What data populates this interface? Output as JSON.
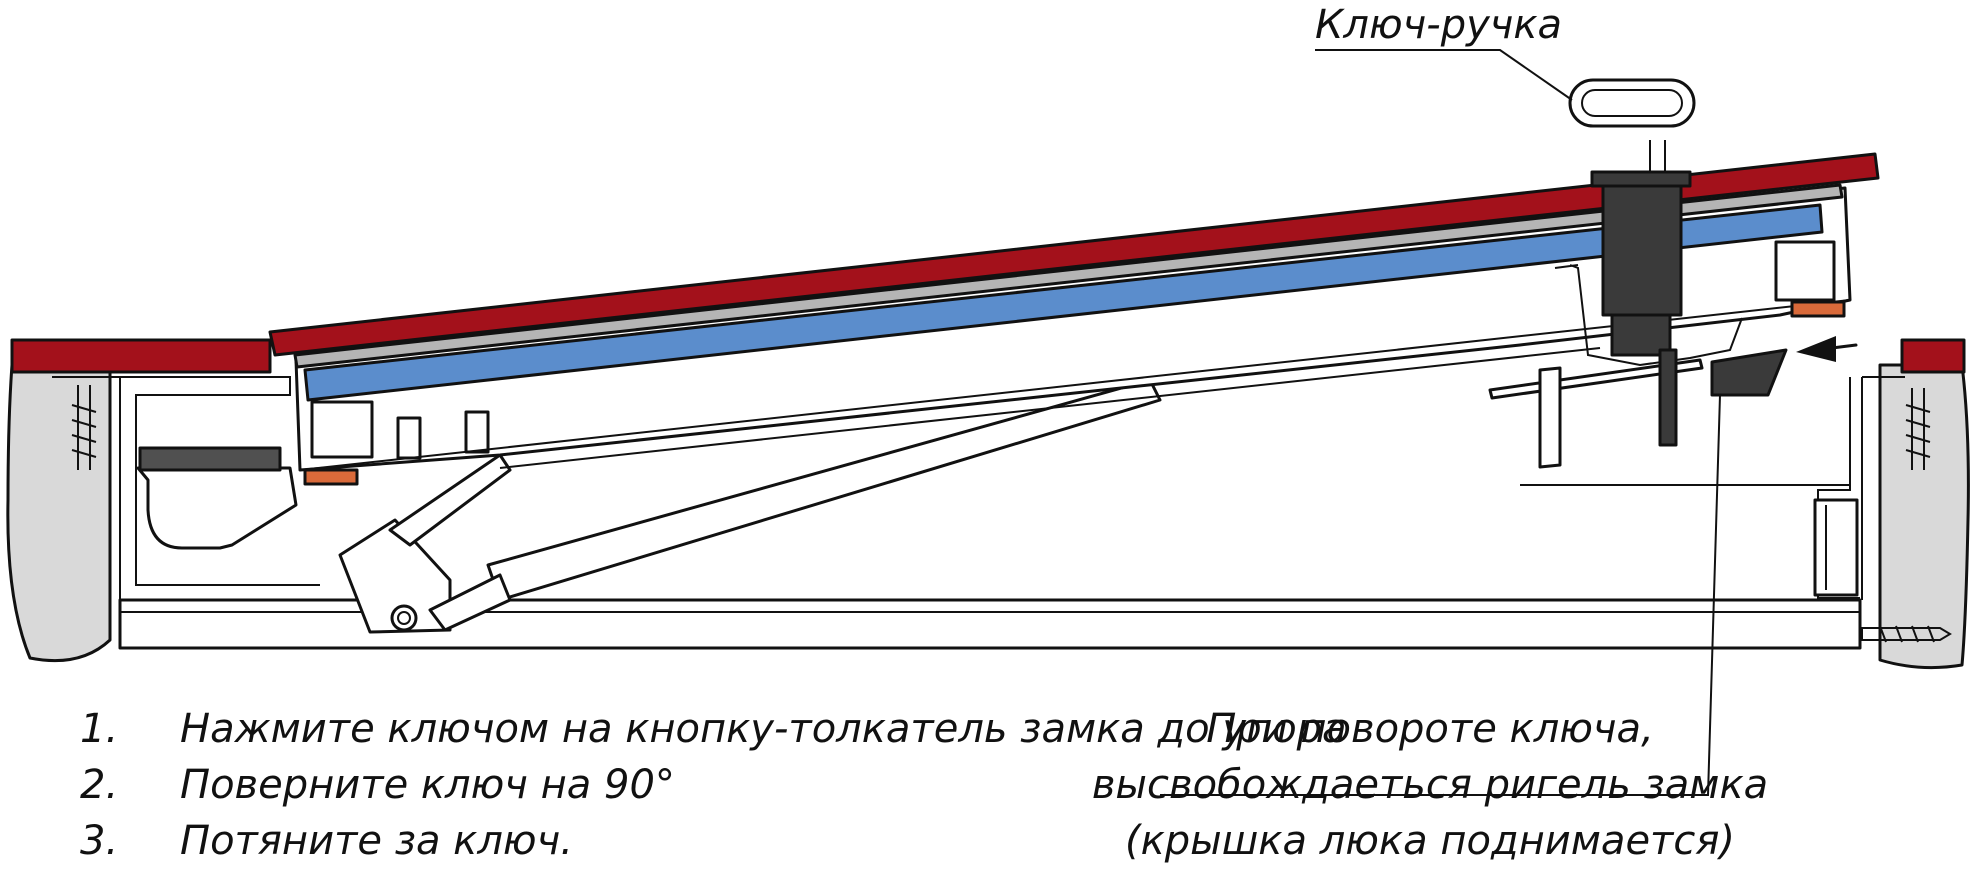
{
  "colors": {
    "cover_red": "#a3111b",
    "insulation_blue": "#5b8dcc",
    "gray_strip": "#b5b5b5",
    "wall_gray": "#d9d9d9",
    "seal_orange": "#d96a3a",
    "lock_dark": "#3a3a3a",
    "outline": "#111111"
  },
  "callouts": {
    "key_handle": "Ключ-ручка"
  },
  "steps": [
    {
      "num": "1.",
      "text": "Нажмите ключом на кнопку-толкатель замка до упора"
    },
    {
      "num": "2.",
      "text": "Поверните ключ на 90°"
    },
    {
      "num": "3.",
      "text": "Потяните за ключ."
    }
  ],
  "note": {
    "line1": "При повороте ключа,",
    "line2": "высвобождаеться ригель замка",
    "line3": "(крышка люка поднимается)"
  }
}
